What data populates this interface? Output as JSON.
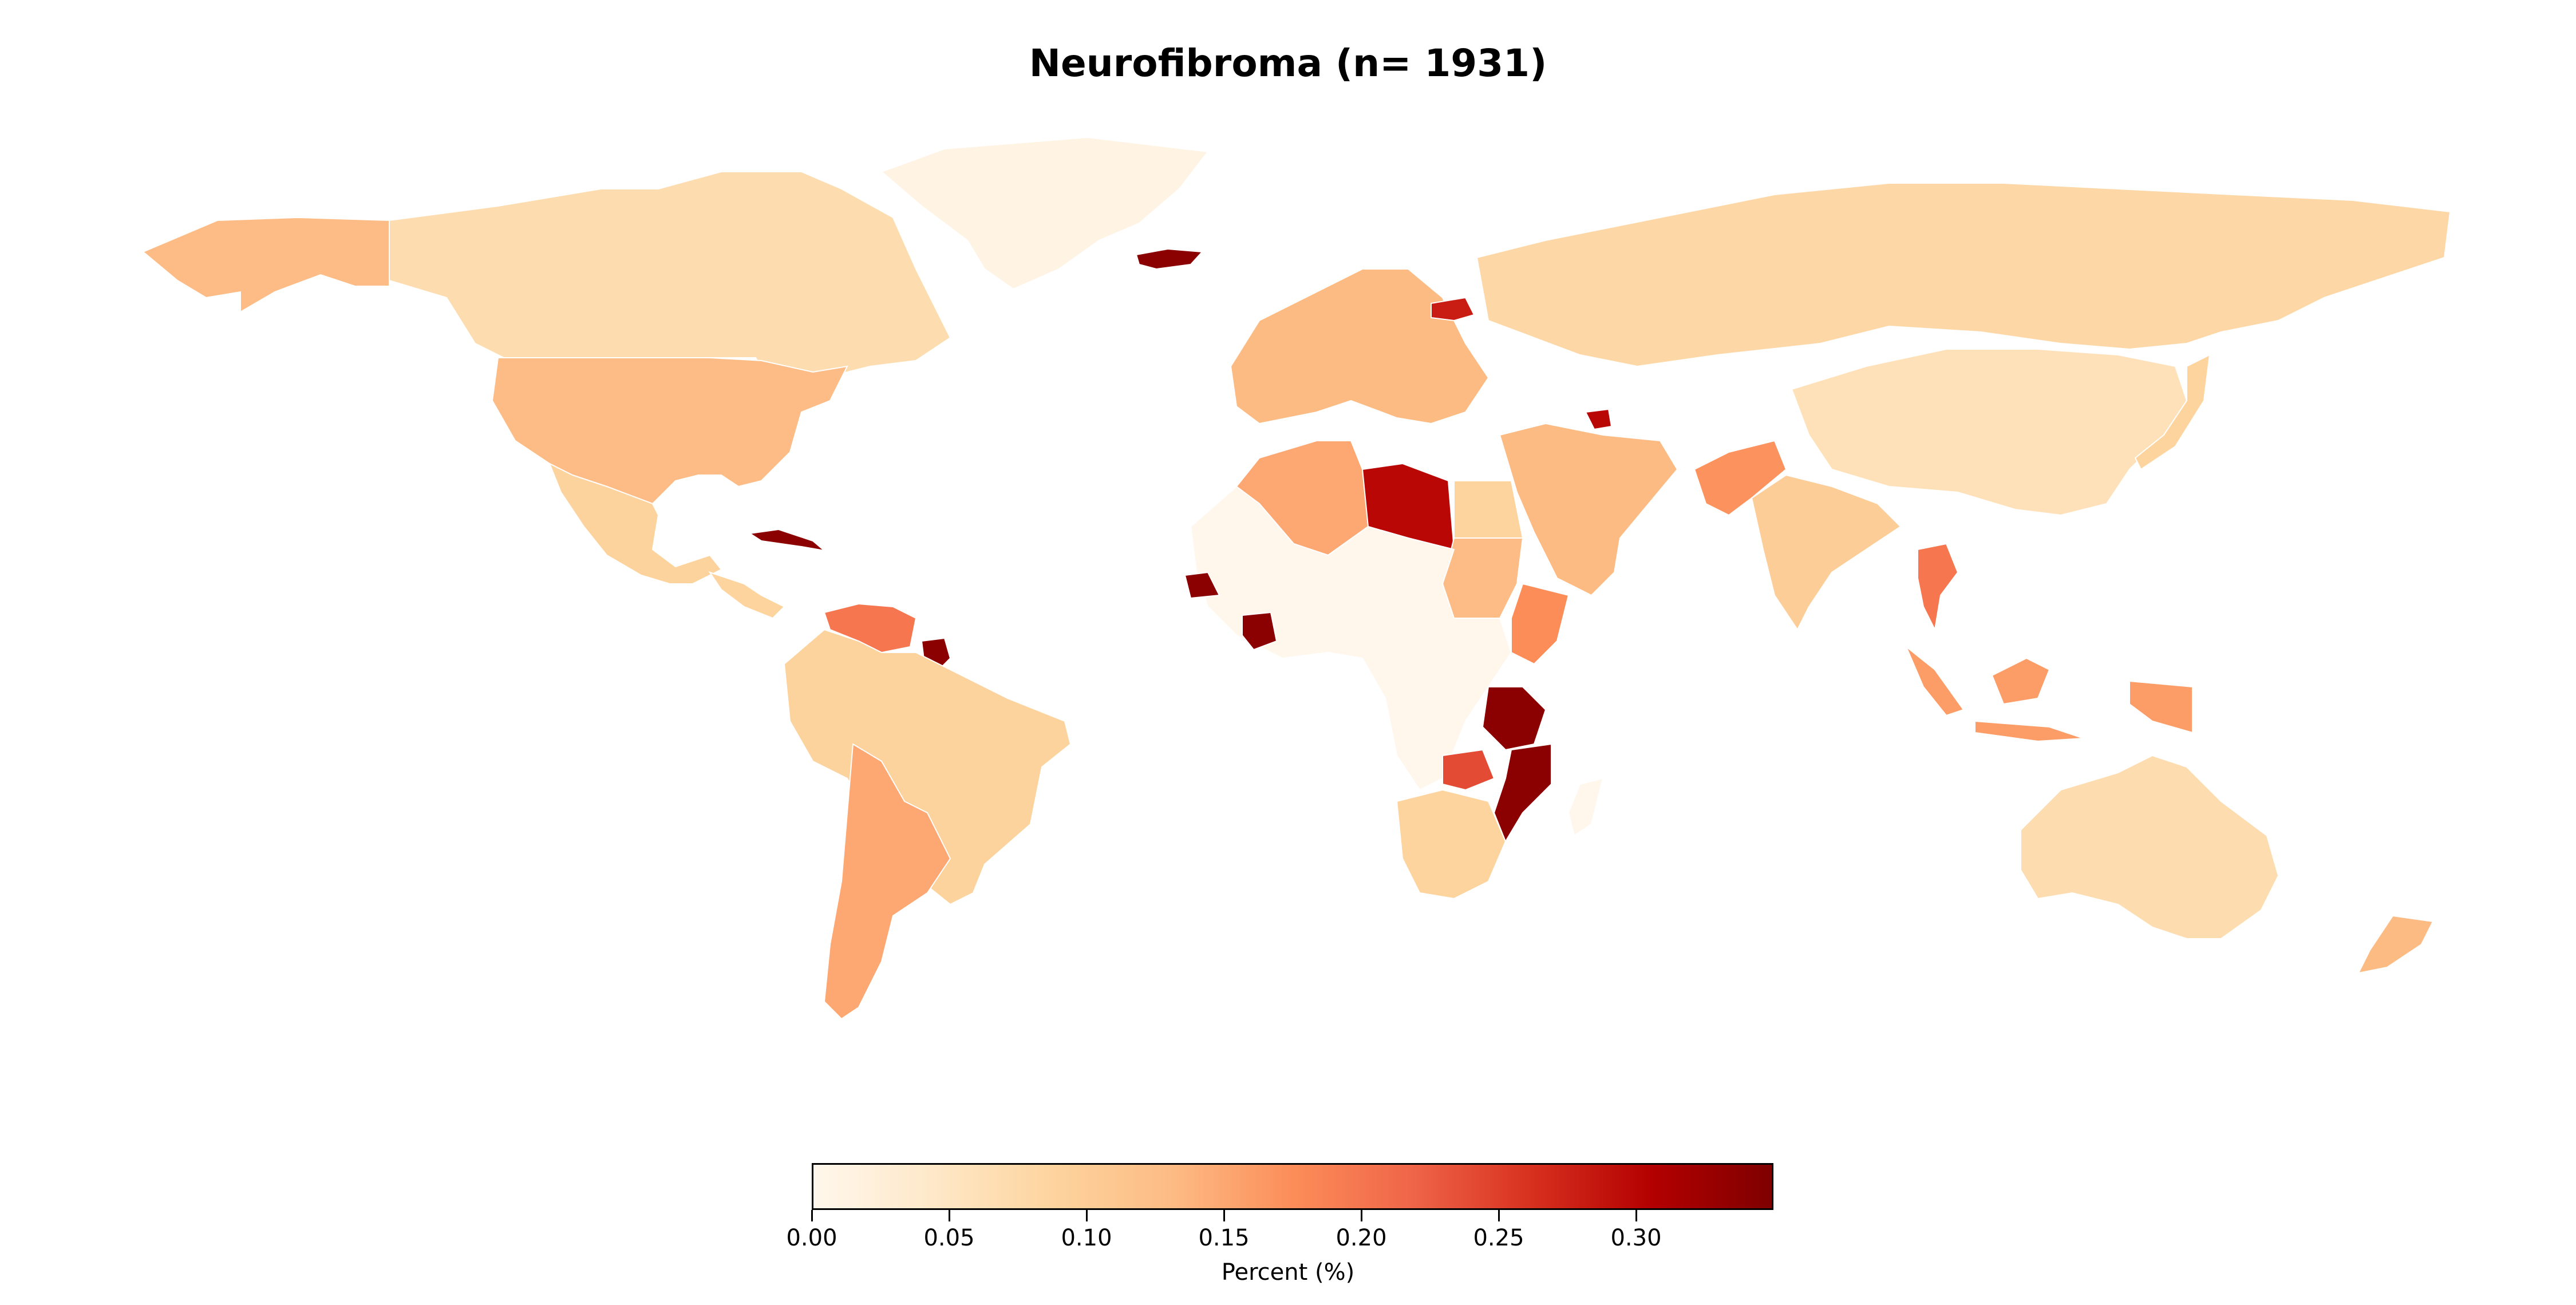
{
  "title": "Neurofibroma (n= 1931)",
  "colorbar": {
    "label": "Percent (%)",
    "vmin": 0.0,
    "vmax": 0.35,
    "colormap": "OrRd",
    "stops": [
      "#fff7ec",
      "#fee8c8",
      "#fdd49e",
      "#fdbb84",
      "#fc8d59",
      "#ef6548",
      "#d7301f",
      "#b30000",
      "#7f0000"
    ],
    "ticks": [
      0.0,
      0.05,
      0.1,
      0.15,
      0.2,
      0.25,
      0.3
    ],
    "tick_labels": [
      "0.00",
      "0.05",
      "0.10",
      "0.15",
      "0.20",
      "0.25",
      "0.30"
    ]
  },
  "regions": [
    {
      "name": "Greenland",
      "value": 0.01
    },
    {
      "name": "Canada",
      "value": 0.07
    },
    {
      "name": "Alaska",
      "value": 0.13
    },
    {
      "name": "United States",
      "value": 0.13
    },
    {
      "name": "Mexico",
      "value": 0.09
    },
    {
      "name": "Cuba",
      "value": 0.34
    },
    {
      "name": "Venezuela",
      "value": 0.2
    },
    {
      "name": "Suriname",
      "value": 0.34
    },
    {
      "name": "Brazil",
      "value": 0.09
    },
    {
      "name": "Argentina",
      "value": 0.15
    },
    {
      "name": "Iceland",
      "value": 0.34
    },
    {
      "name": "Russia",
      "value": 0.08
    },
    {
      "name": "China",
      "value": 0.06
    },
    {
      "name": "India",
      "value": 0.1
    },
    {
      "name": "Libya",
      "value": 0.3
    },
    {
      "name": "Algeria",
      "value": 0.15
    },
    {
      "name": "Sudan",
      "value": 0.13
    },
    {
      "name": "Tanzania",
      "value": 0.34
    },
    {
      "name": "Mozambique",
      "value": 0.34
    },
    {
      "name": "Zambia",
      "value": 0.24
    },
    {
      "name": "Senegal",
      "value": 0.34
    },
    {
      "name": "Cote d'Ivoire",
      "value": 0.34
    },
    {
      "name": "Australia",
      "value": 0.07
    },
    {
      "name": "Indonesia",
      "value": 0.16
    },
    {
      "name": "Thailand",
      "value": 0.2
    },
    {
      "name": "Pakistan",
      "value": 0.17
    },
    {
      "name": "Latvia",
      "value": 0.28
    },
    {
      "name": "Azerbaijan",
      "value": 0.3
    }
  ]
}
